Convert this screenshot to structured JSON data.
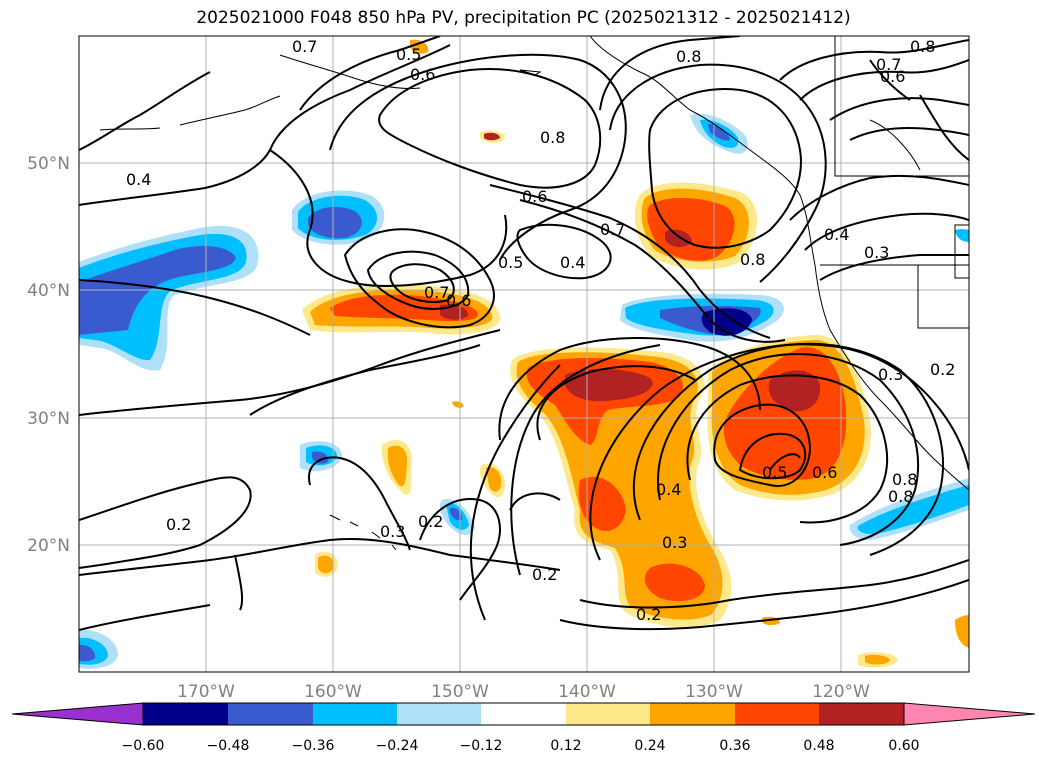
{
  "title": "2025021000 F048 850 hPa PV, precipitation PC (2025021312 - 2025021412)",
  "lat_labels": [
    "50°N",
    "40°N",
    "30°N",
    "20°N"
  ],
  "lon_labels": [
    "170°W",
    "160°W",
    "150°W",
    "140°W",
    "130°W",
    "120°W"
  ],
  "colorbar": {
    "ticks": [
      "−0.60",
      "−0.48",
      "−0.36",
      "−0.24",
      "−0.12",
      "0.12",
      "0.24",
      "0.36",
      "0.48",
      "0.60"
    ],
    "colors": {
      "under": "#9b30d0",
      "neg060": "#00008b",
      "neg048": "#3a5bcf",
      "neg036": "#00bfff",
      "neg024": "#aee0fa",
      "neutral": "#ffffff",
      "pos012": "#fde88a",
      "pos024": "#ffa500",
      "pos036": "#ff4500",
      "pos048": "#b22222",
      "over": "#ff86b0"
    }
  },
  "contour_labels": [
    "0.7",
    "0.5",
    "0.6",
    "0.8",
    "0.4",
    "0.8",
    "0.6",
    "0.7",
    "0.4",
    "0.5",
    "0.7",
    "0.6",
    "0.8",
    "0.4",
    "0.3",
    "0.3",
    "0.2",
    "0.5",
    "0.6",
    "0.8",
    "0.8",
    "0.4",
    "0.3",
    "0.2",
    "0.2",
    "0.3",
    "0.2",
    "0.2",
    "0.8",
    "0.7",
    "0.6"
  ]
}
